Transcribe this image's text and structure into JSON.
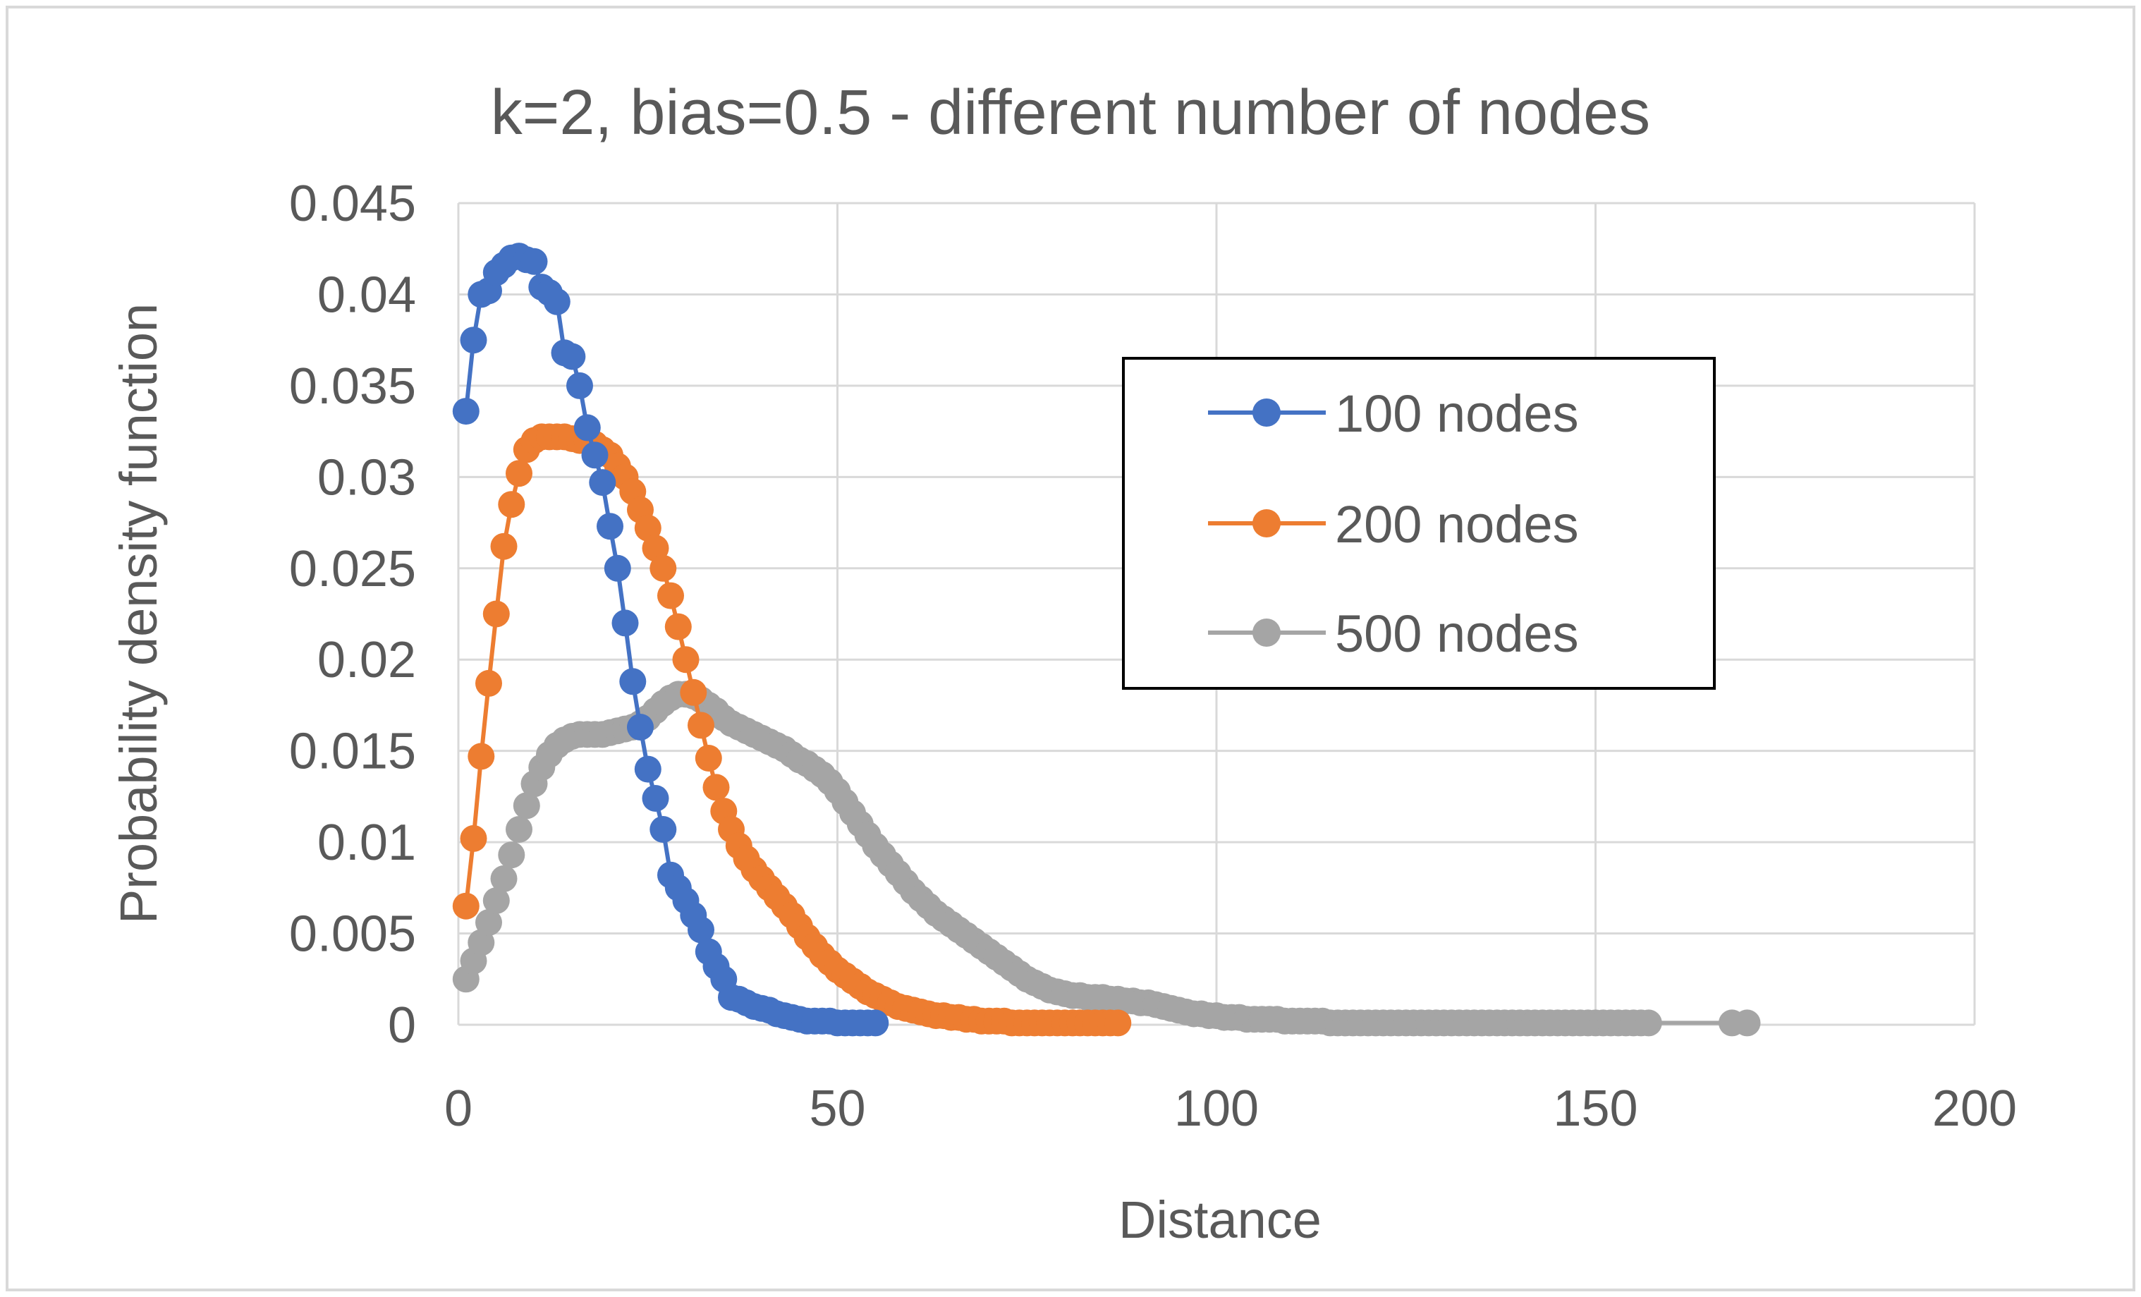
{
  "chart_data": {
    "type": "scatter",
    "title": "k=2, bias=0.5 - different number of nodes",
    "xlabel": "Distance",
    "ylabel": "Probability density function",
    "xlim": [
      0,
      200
    ],
    "ylim": [
      0,
      0.045
    ],
    "xticks": [
      "0",
      "50",
      "100",
      "150",
      "200"
    ],
    "yticks": [
      "0",
      "0.005",
      "0.01",
      "0.015",
      "0.02",
      "0.025",
      "0.03",
      "0.035",
      "0.04",
      "0.045"
    ],
    "grid": true,
    "legend": "inside-top-right",
    "series": [
      {
        "name": "100 nodes",
        "color": "#4472c4",
        "x": [
          1,
          2,
          3,
          4,
          5,
          6,
          7,
          8,
          9,
          10,
          11,
          12,
          13,
          14,
          15,
          16,
          17,
          18,
          19,
          20,
          21,
          22,
          23,
          24,
          25,
          26,
          27,
          28,
          29,
          30,
          31,
          32,
          33,
          34,
          35,
          36,
          37,
          38,
          39,
          40,
          41,
          42,
          43,
          44,
          45,
          46,
          47,
          48,
          49,
          50,
          51,
          52,
          53,
          54,
          55
        ],
        "y": [
          0.0336,
          0.0375,
          0.04,
          0.0402,
          0.0412,
          0.0416,
          0.042,
          0.0421,
          0.0419,
          0.0418,
          0.0404,
          0.0401,
          0.0396,
          0.0368,
          0.0366,
          0.035,
          0.0327,
          0.0312,
          0.0297,
          0.0273,
          0.025,
          0.022,
          0.0188,
          0.0163,
          0.014,
          0.0124,
          0.0107,
          0.0082,
          0.0075,
          0.0068,
          0.006,
          0.0052,
          0.004,
          0.0032,
          0.0025,
          0.0015,
          0.0014,
          0.0012,
          0.001,
          0.0009,
          0.0008,
          0.0006,
          0.0005,
          0.0004,
          0.0003,
          0.0002,
          0.0002,
          0.0002,
          0.0002,
          0.0001,
          0.0001,
          0.0001,
          0.0001,
          0.0001,
          0.0001
        ]
      },
      {
        "name": "200 nodes",
        "color": "#ed7d31",
        "x": [
          1,
          2,
          3,
          4,
          5,
          6,
          7,
          8,
          9,
          10,
          11,
          12,
          13,
          14,
          15,
          16,
          17,
          18,
          19,
          20,
          21,
          22,
          23,
          24,
          25,
          26,
          27,
          28,
          29,
          30,
          31,
          32,
          33,
          34,
          35,
          36,
          37,
          38,
          39,
          40,
          41,
          42,
          43,
          44,
          45,
          46,
          47,
          48,
          49,
          50,
          51,
          52,
          53,
          54,
          55,
          56,
          57,
          58,
          59,
          60,
          61,
          62,
          63,
          64,
          65,
          66,
          67,
          68,
          69,
          70,
          71,
          72,
          73,
          74,
          75,
          76,
          77,
          78,
          79,
          80,
          81,
          82,
          83,
          84,
          85,
          86,
          87
        ],
        "y": [
          0.0065,
          0.0102,
          0.0147,
          0.0187,
          0.0225,
          0.0262,
          0.0285,
          0.0302,
          0.0315,
          0.032,
          0.0322,
          0.0322,
          0.0322,
          0.0322,
          0.0321,
          0.032,
          0.032,
          0.0318,
          0.0315,
          0.0312,
          0.0306,
          0.03,
          0.0292,
          0.0282,
          0.0272,
          0.0261,
          0.025,
          0.0235,
          0.0218,
          0.02,
          0.0182,
          0.0164,
          0.0146,
          0.013,
          0.0117,
          0.0107,
          0.0098,
          0.0091,
          0.0085,
          0.008,
          0.0075,
          0.007,
          0.0065,
          0.006,
          0.0054,
          0.0048,
          0.0043,
          0.0038,
          0.0034,
          0.003,
          0.0027,
          0.0024,
          0.0021,
          0.0018,
          0.0016,
          0.0014,
          0.0012,
          0.001,
          0.0009,
          0.0008,
          0.0007,
          0.0006,
          0.0005,
          0.0005,
          0.0004,
          0.0004,
          0.0003,
          0.0003,
          0.0002,
          0.0002,
          0.0002,
          0.0002,
          0.0001,
          0.0001,
          0.0001,
          0.0001,
          0.0001,
          0.0001,
          0.0001,
          0.0001,
          0.0001,
          0.0001,
          0.0001,
          0.0001,
          0.0001,
          0.0001,
          0.0001
        ]
      },
      {
        "name": "500 nodes",
        "color": "#a5a5a5",
        "x": [
          1,
          2,
          3,
          4,
          5,
          6,
          7,
          8,
          9,
          10,
          11,
          12,
          13,
          14,
          15,
          16,
          17,
          18,
          19,
          20,
          21,
          22,
          23,
          24,
          25,
          26,
          27,
          28,
          29,
          30,
          31,
          32,
          33,
          34,
          35,
          36,
          37,
          38,
          39,
          40,
          41,
          42,
          43,
          44,
          45,
          46,
          47,
          48,
          49,
          50,
          51,
          52,
          53,
          54,
          55,
          56,
          57,
          58,
          59,
          60,
          61,
          62,
          63,
          64,
          65,
          66,
          67,
          68,
          69,
          70,
          71,
          72,
          73,
          74,
          75,
          76,
          77,
          78,
          79,
          80,
          81,
          82,
          83,
          84,
          85,
          86,
          87,
          88,
          89,
          90,
          91,
          92,
          93,
          94,
          95,
          96,
          97,
          98,
          99,
          100,
          101,
          102,
          103,
          104,
          105,
          106,
          107,
          108,
          109,
          110,
          111,
          112,
          113,
          114,
          115,
          116,
          117,
          118,
          119,
          120,
          121,
          122,
          123,
          124,
          125,
          126,
          127,
          128,
          129,
          130,
          131,
          132,
          133,
          134,
          135,
          136,
          137,
          138,
          139,
          140,
          141,
          142,
          143,
          144,
          145,
          146,
          147,
          148,
          149,
          150,
          151,
          152,
          153,
          154,
          155,
          156,
          157,
          168,
          170
        ],
        "y": [
          0.0025,
          0.0035,
          0.0045,
          0.0056,
          0.0068,
          0.008,
          0.0093,
          0.0107,
          0.012,
          0.0132,
          0.0141,
          0.0148,
          0.0153,
          0.0156,
          0.0158,
          0.0159,
          0.0159,
          0.0159,
          0.0159,
          0.016,
          0.0161,
          0.0162,
          0.0163,
          0.0165,
          0.0168,
          0.0172,
          0.0176,
          0.0179,
          0.0181,
          0.0181,
          0.018,
          0.0178,
          0.0175,
          0.0172,
          0.0168,
          0.0165,
          0.0163,
          0.0161,
          0.0159,
          0.0157,
          0.0155,
          0.0153,
          0.0151,
          0.0148,
          0.0145,
          0.0143,
          0.014,
          0.0137,
          0.0133,
          0.0128,
          0.0122,
          0.0116,
          0.011,
          0.0104,
          0.0098,
          0.0093,
          0.0088,
          0.0083,
          0.0078,
          0.0073,
          0.0069,
          0.0065,
          0.0061,
          0.0058,
          0.0055,
          0.0052,
          0.0049,
          0.0046,
          0.0043,
          0.004,
          0.0037,
          0.0034,
          0.0031,
          0.0028,
          0.0025,
          0.0023,
          0.0021,
          0.0019,
          0.0018,
          0.0017,
          0.0016,
          0.0016,
          0.0015,
          0.0015,
          0.0015,
          0.0014,
          0.0014,
          0.0013,
          0.0013,
          0.0012,
          0.0012,
          0.0011,
          0.001,
          0.0009,
          0.0008,
          0.0007,
          0.0006,
          0.0006,
          0.0005,
          0.0005,
          0.0004,
          0.0004,
          0.0004,
          0.0003,
          0.0003,
          0.0003,
          0.0003,
          0.0003,
          0.0002,
          0.0002,
          0.0002,
          0.0002,
          0.0002,
          0.0002,
          0.0001,
          0.0001,
          0.0001,
          0.0001,
          0.0001,
          0.0001,
          0.0001,
          0.0001,
          0.0001,
          0.0001,
          0.0001,
          0.0001,
          0.0001,
          0.0001,
          0.0001,
          0.0001,
          0.0001,
          0.0001,
          0.0001,
          0.0001,
          0.0001,
          0.0001,
          0.0001,
          0.0001,
          0.0001,
          0.0001,
          0.0001,
          0.0001,
          0.0001,
          0.0001,
          0.0001,
          0.0001,
          0.0001,
          0.0001,
          0.0001,
          0.0001,
          0.0001,
          0.0001,
          0.0001,
          0.0001,
          0.0001,
          0.0001,
          0.0001,
          0.0001,
          0.0001
        ]
      }
    ]
  }
}
